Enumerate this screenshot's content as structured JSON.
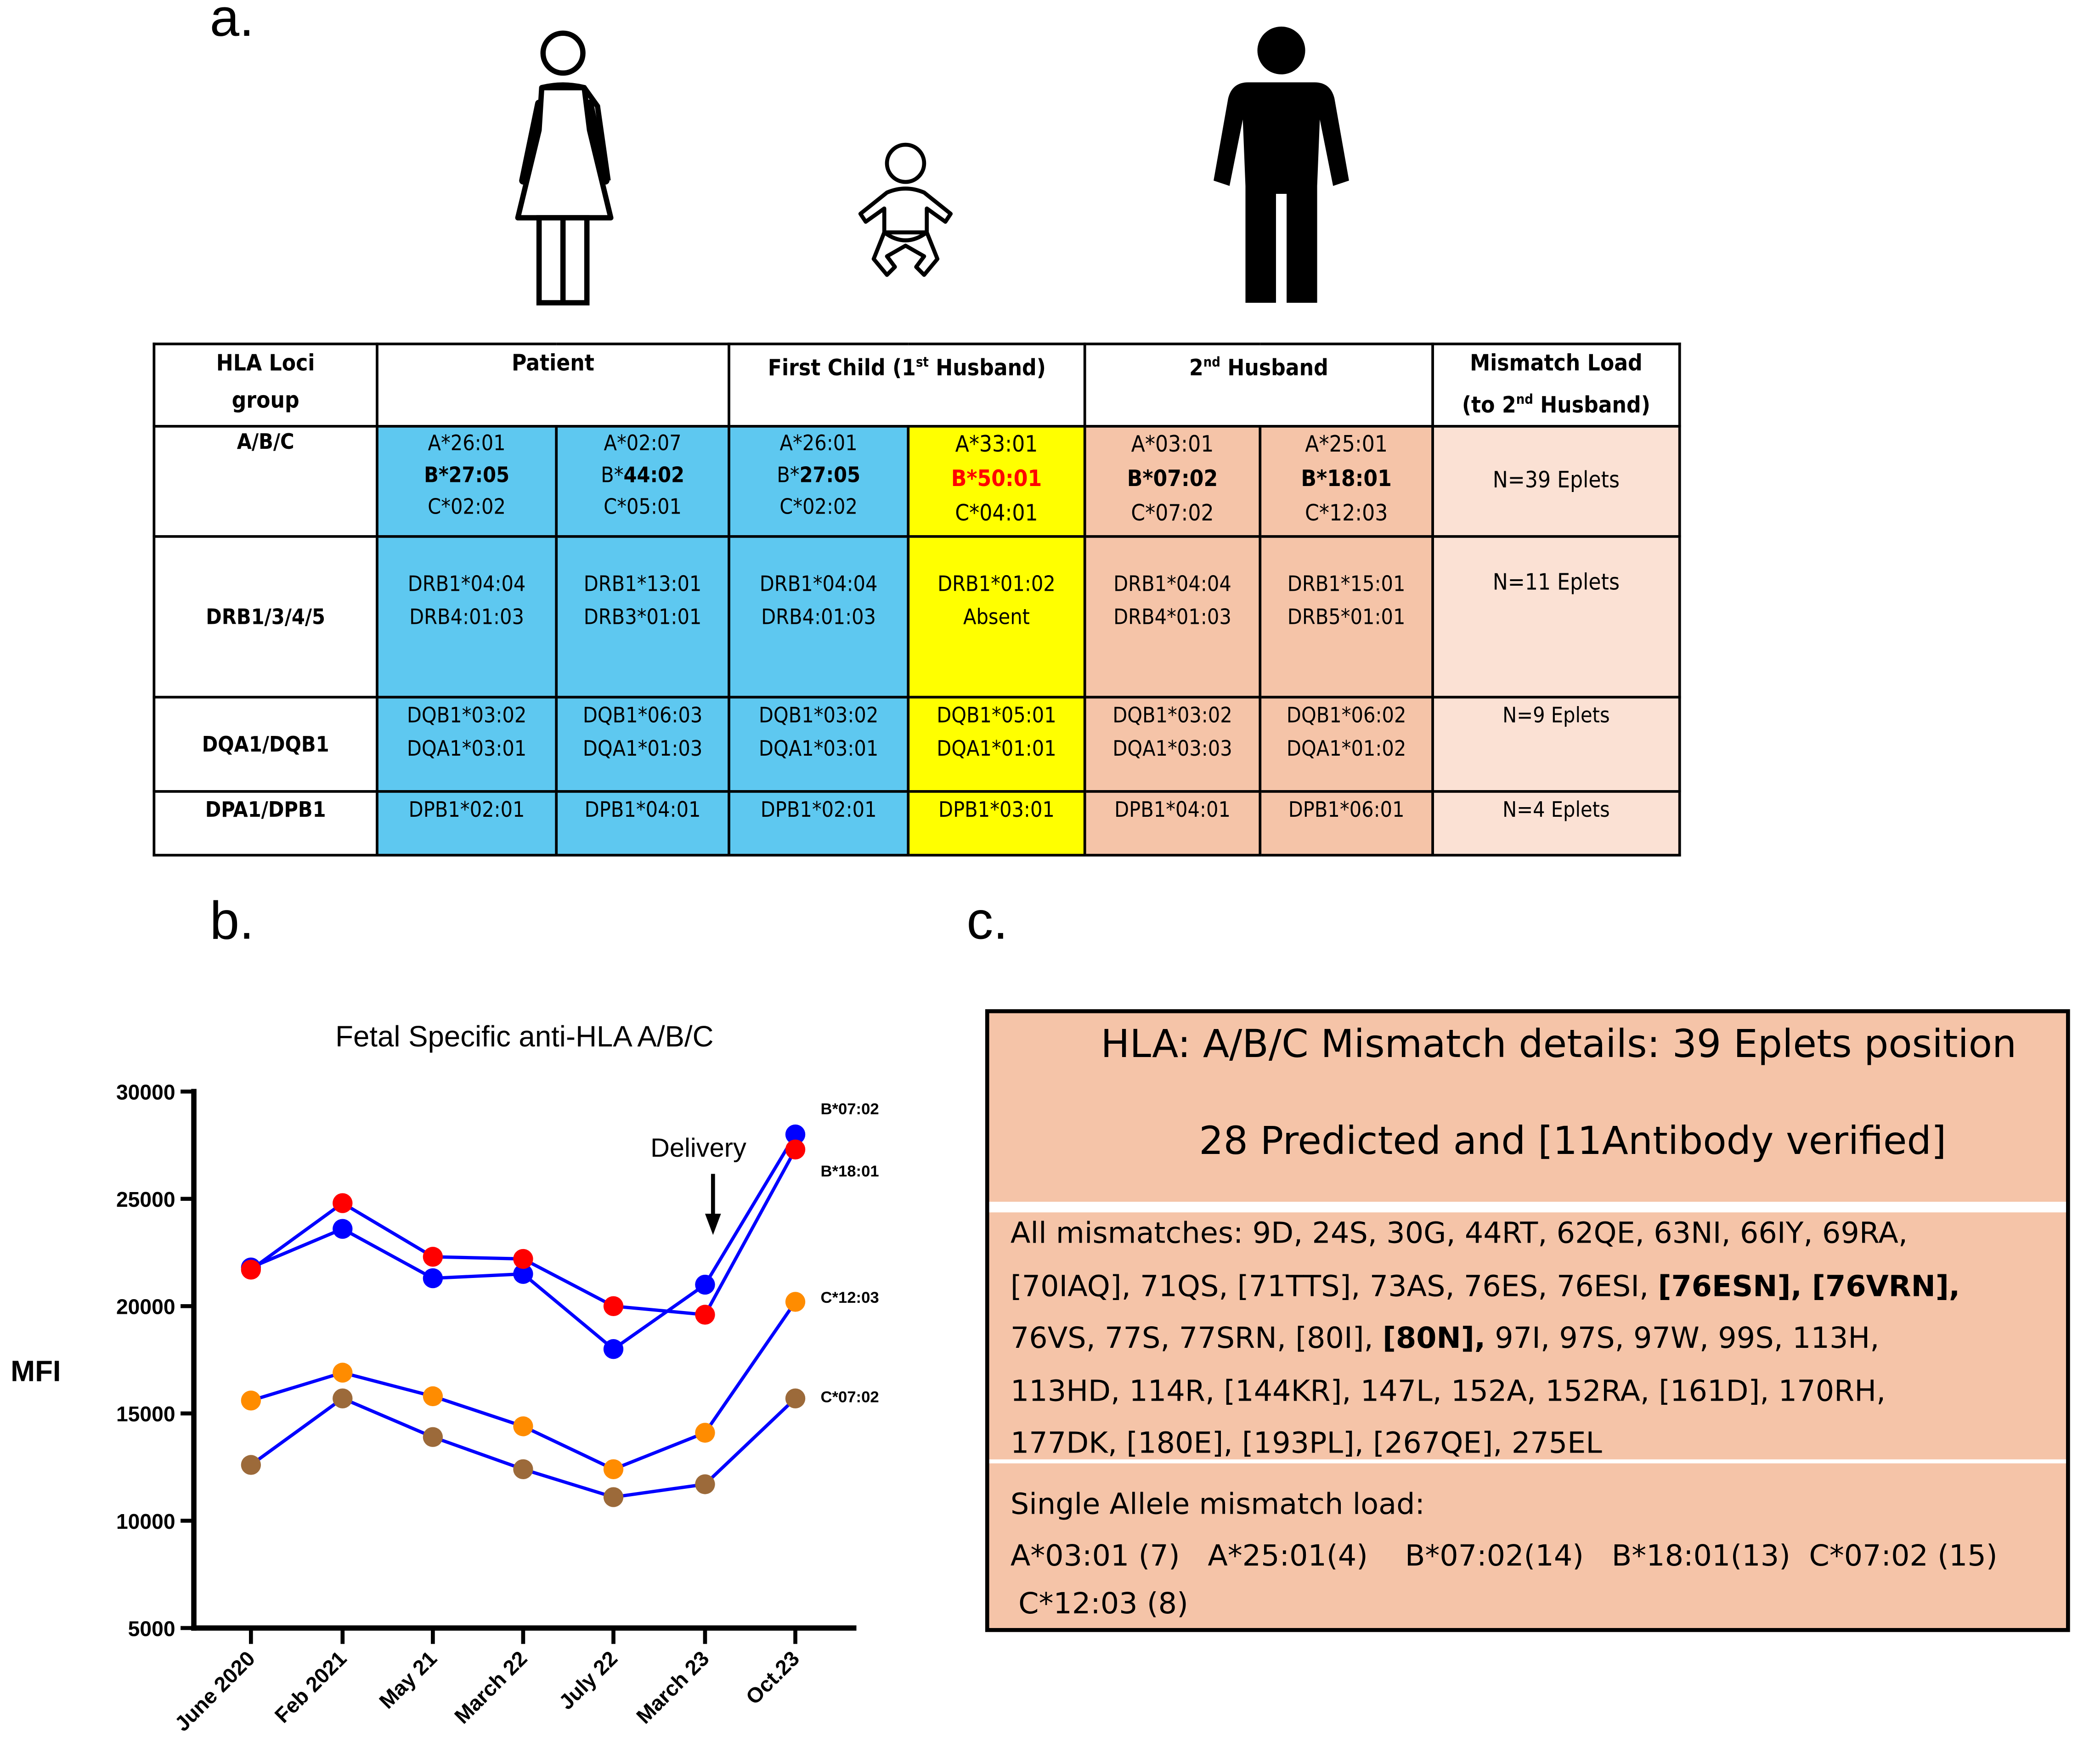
{
  "panels": {
    "a": "a.",
    "b": "b.",
    "c": "c."
  },
  "figures": [
    "woman-icon",
    "baby-icon",
    "man-icon"
  ],
  "table": {
    "headers": {
      "loci": [
        "HLA Loci",
        "group"
      ],
      "patient": "Patient",
      "child_prefix": "First Child (1",
      "child_sup": "st",
      "child_suffix": " Husband)",
      "husband_prefix": "2",
      "husband_sup": "nd",
      "husband_suffix": " Husband",
      "mismatch_line1": "Mismatch Load",
      "mismatch_prefix": "(to 2",
      "mismatch_sup": "nd",
      "mismatch_suffix": " Husband)"
    },
    "rows": [
      {
        "locus": "A/B/C",
        "patient1": [
          "A*26:01",
          "B*27:05",
          "C*02:02"
        ],
        "patient2": [
          "A*02:07",
          "B*",
          "44:02",
          "C*05:01"
        ],
        "child1": [
          "A*26:01",
          "B*",
          "27:05",
          "C*02:02"
        ],
        "child2": [
          "A*33:01",
          "B*50:01",
          "C*04:01"
        ],
        "husband1": [
          "A*03:01",
          "B*07:02",
          "C*07:02"
        ],
        "husband2": [
          "A*25:01",
          "B*18:01",
          "C*12:03"
        ],
        "load": "N=39 Eplets"
      },
      {
        "locus": "DRB1/3/4/5",
        "patient1": [
          "DRB1*04:04",
          "DRB4:01:03"
        ],
        "patient2": [
          "DRB1*13:01",
          "DRB3*01:01"
        ],
        "child1": [
          "DRB1*04:04",
          "DRB4:01:03"
        ],
        "child2": [
          "DRB1*01:02",
          "Absent"
        ],
        "husband1": [
          "DRB1*04:04",
          "DRB4*01:03"
        ],
        "husband2": [
          "DRB1*15:01",
          "DRB5*01:01"
        ],
        "load": "N=11 Eplets"
      },
      {
        "locus": "DQA1/DQB1",
        "patient1": [
          "DQB1*03:02",
          "DQA1*03:01"
        ],
        "patient2": [
          "DQB1*06:03",
          "DQA1*01:03"
        ],
        "child1": [
          "DQB1*03:02",
          "DQA1*03:01"
        ],
        "child2": [
          "DQB1*05:01",
          "DQA1*01:01"
        ],
        "husband1": [
          "DQB1*03:02",
          "DQA1*03:03"
        ],
        "husband2": [
          "DQB1*06:02",
          "DQA1*01:02"
        ],
        "load": "N=9 Eplets"
      },
      {
        "locus": "DPA1/DPB1",
        "patient1": [
          "DPB1*02:01"
        ],
        "patient2": [
          "DPB1*04:01"
        ],
        "child1": [
          "DPB1*02:01"
        ],
        "child2": [
          "DPB1*03:01"
        ],
        "husband1": [
          "DPB1*04:01"
        ],
        "husband2": [
          "DPB1*06:01"
        ],
        "load": "N=4 Eplets"
      }
    ]
  },
  "chart_data": {
    "type": "line",
    "title": "Fetal Specific anti-HLA A/B/C",
    "xlabel": "",
    "ylabel": "MFI",
    "categories": [
      "June 2020",
      "Feb 2021",
      "May 21",
      "March 22",
      "July 22",
      "March 23",
      "Oct.23"
    ],
    "ylim": [
      5000,
      30000
    ],
    "yticks": [
      5000,
      10000,
      15000,
      20000,
      25000,
      30000
    ],
    "grid": false,
    "line_color": "#0000ff",
    "annotation": {
      "text": "Delivery",
      "at_category": "March 23"
    },
    "series": [
      {
        "name": "B*07:02",
        "color": "#0000ff",
        "values": [
          21800,
          23600,
          21300,
          21500,
          18000,
          21000,
          28000
        ]
      },
      {
        "name": "B*18:01",
        "color": "#ff0000",
        "values": [
          21700,
          24800,
          22300,
          22200,
          20000,
          19600,
          27300
        ]
      },
      {
        "name": "C*12:03",
        "color": "#ff8c00",
        "values": [
          15600,
          16900,
          15800,
          14400,
          12400,
          14100,
          20200
        ]
      },
      {
        "name": "C*07:02",
        "color": "#9c6a3a",
        "values": [
          12600,
          15700,
          13900,
          12400,
          11100,
          11700,
          15700
        ]
      }
    ]
  },
  "details": {
    "title_line1": "HLA: A/B/C Mismatch details: 39 Eplets position",
    "title_line2": "28 Predicted and [11Antibody verified]",
    "mismatch_lines": [
      [
        "All mismatches: 9D, 24S, 30G, 44RT, 62QE, 63NI, 66IY, 69RA,"
      ],
      [
        "[70IAQ], 71QS, [71TTS], 73AS, 76ES, 76ESI, ",
        "[76ESN], [76VRN],"
      ],
      [
        "76VS, 77S, 77SRN, [80I], ",
        "[80N],",
        " 97I, 97S, 97W, 99S, 113H,"
      ],
      [
        "113HD, 114R, [144KR], 147L, 152A, 152RA, [161D], 170RH,"
      ],
      [
        "177DK, [180E], [193PL], [267QE], 275EL"
      ]
    ],
    "single_allele_title": "Single Allele mismatch load:",
    "single_allele_line1": "A*03:01 (7)   A*25:01(4)    B*07:02(14)   B*18:01(13)  C*07:02 (15)",
    "single_allele_line2": "C*12:03 (8)"
  },
  "colors": {
    "patient": "#5ec8f0",
    "child_paternal": "#ffff00",
    "husband": "#f5c4a8",
    "load": "#fbe1d4",
    "highlight": "#ff0000"
  }
}
